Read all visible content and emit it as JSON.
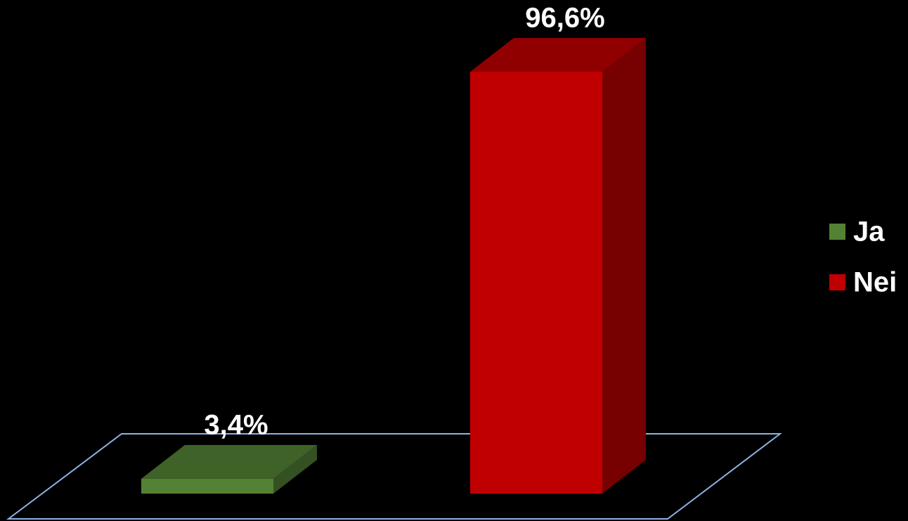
{
  "chart_data": {
    "type": "bar3d",
    "categories": [
      null
    ],
    "series": [
      {
        "name": "Ja",
        "color": "#548235",
        "values": [
          3.4
        ],
        "value_labels": [
          "3,4%"
        ]
      },
      {
        "name": "Nei",
        "color": "#c00000",
        "values": [
          96.6
        ],
        "value_labels": [
          "96,6%"
        ]
      }
    ],
    "legend": "right"
  }
}
